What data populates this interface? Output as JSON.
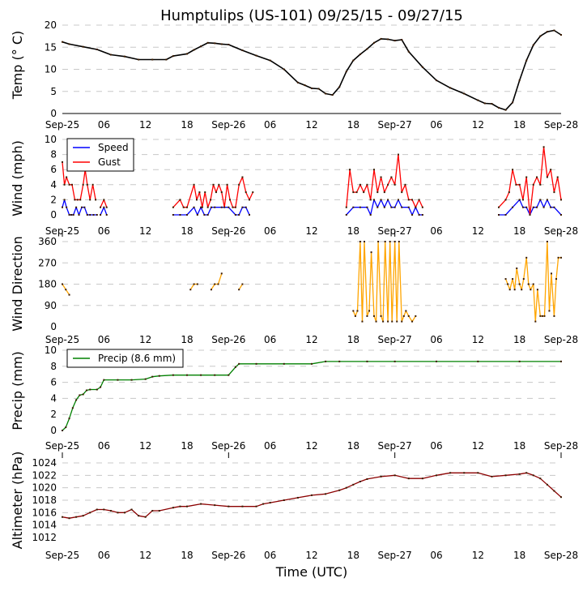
{
  "chart_data": [
    {
      "type": "line",
      "id": "temp",
      "title": "Humptulips (US-101) 09/25/15 - 09/27/15",
      "ylabel": "Temp (° C)",
      "xlabel": "",
      "ylim": [
        0,
        20
      ],
      "yticks": [
        "0",
        "5",
        "10",
        "15",
        "20"
      ],
      "grid": true,
      "x_hours": [
        0,
        1,
        3,
        5,
        7,
        9,
        11,
        13,
        15,
        16,
        18,
        19,
        20,
        21,
        22,
        23,
        24,
        26,
        28,
        30,
        32,
        34,
        35,
        36,
        37,
        38,
        39,
        40,
        41,
        42,
        43,
        44,
        45,
        46,
        47,
        48,
        49,
        50,
        52,
        54,
        56,
        58,
        60,
        61,
        62,
        63,
        64,
        65,
        66,
        67,
        68,
        69,
        70,
        71,
        72
      ],
      "series": [
        {
          "name": "Temp",
          "color": "#000000",
          "values": [
            16.2,
            15.7,
            15.1,
            14.5,
            13.3,
            12.9,
            12.2,
            12.2,
            12.2,
            13.0,
            13.5,
            14.4,
            15.2,
            16.0,
            15.9,
            15.7,
            15.6,
            14.3,
            13.1,
            12.0,
            10.0,
            7.0,
            6.4,
            5.7,
            5.6,
            4.5,
            4.2,
            6.0,
            9.5,
            12.0,
            13.4,
            14.6,
            16.0,
            16.9,
            16.8,
            16.5,
            16.7,
            14.0,
            10.5,
            7.5,
            5.8,
            4.5,
            3.0,
            2.3,
            2.2,
            1.3,
            0.8,
            2.5,
            7.5,
            12.0,
            15.5,
            17.5,
            18.5,
            18.8,
            17.8
          ]
        }
      ]
    },
    {
      "type": "line",
      "id": "wind",
      "ylabel": "Wind (mph)",
      "ylim": [
        0,
        10
      ],
      "yticks": [
        "0",
        "2",
        "4",
        "6",
        "8",
        "10"
      ],
      "grid": true,
      "legend": {
        "position": "upper-left",
        "entries": [
          "Speed",
          "Gust"
        ]
      },
      "series": [
        {
          "name": "Speed",
          "color": "#0000ff",
          "segments": [
            {
              "x_hours": [
                0,
                0.3,
                0.6,
                1,
                1.3,
                1.6,
                2,
                2.4,
                2.8,
                3.2,
                3.6,
                4,
                4.5,
                5
              ],
              "values": [
                1,
                2,
                1,
                0,
                0,
                0,
                1,
                0,
                1,
                1,
                0,
                0,
                0,
                0
              ]
            },
            {
              "x_hours": [
                5.5,
                6,
                6.4
              ],
              "values": [
                0,
                1,
                0
              ]
            },
            {
              "x_hours": [
                16,
                17,
                18,
                19,
                19.5,
                20,
                20.5,
                21,
                21.5,
                22,
                23,
                24,
                25,
                25.5,
                26,
                26.5,
                27
              ],
              "values": [
                0,
                0,
                0,
                1,
                0,
                1,
                0,
                0,
                1,
                1,
                1,
                1,
                0,
                0,
                1,
                1,
                0
              ]
            },
            {
              "x_hours": [
                41,
                42,
                43,
                44,
                44.5,
                45,
                45.5,
                46,
                46.5,
                47,
                47.5,
                48,
                48.5,
                49,
                50,
                50.5,
                51,
                51.5,
                52
              ],
              "values": [
                0,
                1,
                1,
                1,
                0,
                2,
                1,
                2,
                1,
                2,
                1,
                1,
                2,
                1,
                1,
                0,
                1,
                0,
                0
              ]
            },
            {
              "x_hours": [
                63,
                64,
                65,
                66,
                66.5,
                67,
                67.5,
                68,
                68.5,
                69,
                69.5,
                70,
                70.5,
                71,
                72
              ],
              "values": [
                0,
                0,
                1,
                2,
                1,
                1,
                0,
                1,
                1,
                2,
                1,
                2,
                1,
                1,
                0
              ]
            }
          ]
        },
        {
          "name": "Gust",
          "color": "#ff0000",
          "segments": [
            {
              "x_hours": [
                0,
                0.3,
                0.6,
                1,
                1.4,
                1.8,
                2.2,
                2.6,
                3,
                3.3,
                3.6,
                4,
                4.4,
                4.8
              ],
              "values": [
                7,
                4,
                5,
                4,
                4,
                2,
                2,
                2,
                4,
                6,
                4,
                2,
                4,
                2
              ]
            },
            {
              "x_hours": [
                5.5,
                6,
                6.4
              ],
              "values": [
                1,
                2,
                1
              ]
            },
            {
              "x_hours": [
                16,
                17,
                17.5,
                18,
                19,
                19.4,
                19.8,
                20.2,
                20.6,
                21,
                21.4,
                21.8,
                22.2,
                22.6,
                23,
                23.4,
                23.8,
                24.2,
                24.6,
                25,
                25.5,
                26,
                26.5,
                27,
                27.5
              ],
              "values": [
                1,
                2,
                1,
                1,
                4,
                2,
                3,
                1,
                3,
                1,
                2,
                4,
                3,
                4,
                3,
                1,
                4,
                2,
                1,
                1,
                4,
                5,
                3,
                2,
                3
              ]
            },
            {
              "x_hours": [
                41,
                41.5,
                42,
                42.5,
                43,
                43.5,
                44,
                44.5,
                45,
                45.5,
                46,
                46.5,
                47,
                47.5,
                48,
                48.5,
                49,
                49.5,
                50,
                50.5,
                51,
                51.5,
                52
              ],
              "values": [
                1,
                6,
                3,
                3,
                4,
                3,
                4,
                2,
                6,
                3,
                5,
                3,
                4,
                5,
                4,
                8,
                3,
                4,
                2,
                2,
                1,
                2,
                1
              ]
            },
            {
              "x_hours": [
                63,
                64,
                64.5,
                65,
                65.5,
                66,
                66.5,
                67,
                67.5,
                68,
                68.5,
                69,
                69.5,
                70,
                70.5,
                71,
                71.5,
                72
              ],
              "values": [
                1,
                2,
                3,
                6,
                4,
                4,
                2,
                5,
                0,
                4,
                5,
                4,
                9,
                5,
                6,
                3,
                5,
                2
              ]
            }
          ]
        }
      ]
    },
    {
      "type": "line",
      "id": "direction",
      "ylabel": "Wind Direction",
      "ylim": [
        0,
        360
      ],
      "yticks": [
        "0",
        "90",
        "180",
        "270",
        "360"
      ],
      "grid": true,
      "series": [
        {
          "name": "Direction",
          "color": "#ffa500",
          "segments": [
            {
              "x_hours": [
                0,
                0.5,
                1
              ],
              "values": [
                180,
                157,
                135
              ]
            },
            {
              "x_hours": [
                18.5,
                19,
                19.5
              ],
              "values": [
                157,
                180,
                180
              ]
            },
            {
              "x_hours": [
                21.5,
                22,
                22.5,
                23
              ],
              "values": [
                157,
                180,
                180,
                225
              ]
            },
            {
              "x_hours": [
                25.5,
                26
              ],
              "values": [
                157,
                180
              ]
            },
            {
              "x_hours": [
                42,
                42.3,
                42.6,
                43,
                43.3,
                43.6,
                44,
                44.3,
                44.6,
                45,
                45.3,
                45.6,
                46,
                46.3,
                46.6,
                47,
                47.3,
                47.6,
                48,
                48.3,
                48.6,
                49,
                49.3,
                49.6,
                50,
                50.5,
                51
              ],
              "values": [
                67,
                45,
                67,
                360,
                22,
                360,
                45,
                67,
                315,
                45,
                22,
                360,
                45,
                22,
                360,
                22,
                360,
                22,
                360,
                22,
                360,
                22,
                45,
                67,
                45,
                22,
                45
              ]
            },
            {
              "x_hours": [
                64,
                64.3,
                64.6,
                65,
                65.3,
                65.6,
                66,
                66.3,
                66.6,
                67,
                67.3,
                67.6,
                68,
                68.3,
                68.6,
                69,
                69.3,
                69.6,
                70,
                70.3,
                70.6,
                71,
                71.3,
                71.6,
                72
              ],
              "values": [
                202,
                180,
                157,
                202,
                157,
                247,
                180,
                157,
                202,
                292,
                180,
                157,
                180,
                22,
                157,
                45,
                45,
                45,
                360,
                67,
                225,
                45,
                202,
                292,
                292
              ]
            }
          ]
        }
      ]
    },
    {
      "type": "line",
      "id": "precip",
      "ylabel": "Precip (mm)",
      "ylim": [
        0,
        10
      ],
      "yticks": [
        "0",
        "2",
        "4",
        "6",
        "8",
        "10"
      ],
      "grid": true,
      "legend": {
        "position": "upper-left",
        "entries": [
          "Precip (8.6 mm)"
        ]
      },
      "x_hours": [
        0,
        0.5,
        1,
        1.5,
        2,
        2.5,
        3,
        3.5,
        4,
        5,
        5.5,
        6,
        8,
        10,
        12,
        13,
        14,
        16,
        18,
        20,
        22,
        24,
        25,
        25.5,
        28,
        32,
        36,
        38,
        40,
        44,
        48,
        54,
        60,
        66,
        72
      ],
      "series": [
        {
          "name": "Precip (8.6 mm)",
          "color": "#008000",
          "values": [
            0,
            0.4,
            1.5,
            2.8,
            3.8,
            4.4,
            4.5,
            5.0,
            5.1,
            5.1,
            5.4,
            6.3,
            6.3,
            6.3,
            6.4,
            6.7,
            6.8,
            6.9,
            6.9,
            6.9,
            6.9,
            6.9,
            7.9,
            8.3,
            8.3,
            8.3,
            8.3,
            8.6,
            8.6,
            8.6,
            8.6,
            8.6,
            8.6,
            8.6,
            8.6
          ]
        }
      ]
    },
    {
      "type": "line",
      "id": "altimeter",
      "ylabel": "Altimeter (hPa)",
      "xlabel": "Time (UTC)",
      "ylim": [
        1012,
        1024
      ],
      "yticks": [
        "1012",
        "1014",
        "1016",
        "1018",
        "1020",
        "1022",
        "1024"
      ],
      "grid": true,
      "x_hours": [
        0,
        1,
        2,
        3,
        4,
        5,
        6,
        7,
        8,
        9,
        10,
        11,
        12,
        13,
        14,
        16,
        17,
        18,
        20,
        22,
        24,
        26,
        28,
        29,
        30,
        32,
        34,
        36,
        38,
        40,
        41,
        42,
        43,
        44,
        46,
        48,
        50,
        52,
        54,
        56,
        58,
        60,
        62,
        64,
        66,
        67,
        68,
        69,
        70,
        71,
        72
      ],
      "series": [
        {
          "name": "Altimeter",
          "color": "#8b0000",
          "values": [
            1015.3,
            1015.1,
            1015.3,
            1015.5,
            1016.0,
            1016.5,
            1016.5,
            1016.3,
            1016.0,
            1016.0,
            1016.5,
            1015.5,
            1015.3,
            1016.3,
            1016.3,
            1016.8,
            1017.0,
            1017.0,
            1017.4,
            1017.2,
            1017.0,
            1017.0,
            1017.0,
            1017.4,
            1017.6,
            1018.0,
            1018.4,
            1018.8,
            1019.0,
            1019.6,
            1020.0,
            1020.5,
            1021.0,
            1021.4,
            1021.8,
            1022.0,
            1021.5,
            1021.5,
            1022.0,
            1022.4,
            1022.4,
            1022.4,
            1021.8,
            1022.0,
            1022.2,
            1022.4,
            1022.0,
            1021.5,
            1020.5,
            1019.5,
            1018.5
          ]
        }
      ]
    }
  ],
  "x_axis": {
    "range_hours": [
      0,
      72
    ],
    "tick_hours": [
      0,
      6,
      12,
      18,
      24,
      30,
      36,
      42,
      48,
      54,
      60,
      66,
      72
    ],
    "tick_labels": [
      "Sep-25",
      "06",
      "12",
      "18",
      "Sep-26",
      "06",
      "12",
      "18",
      "Sep-27",
      "06",
      "12",
      "18",
      "Sep-28"
    ]
  }
}
